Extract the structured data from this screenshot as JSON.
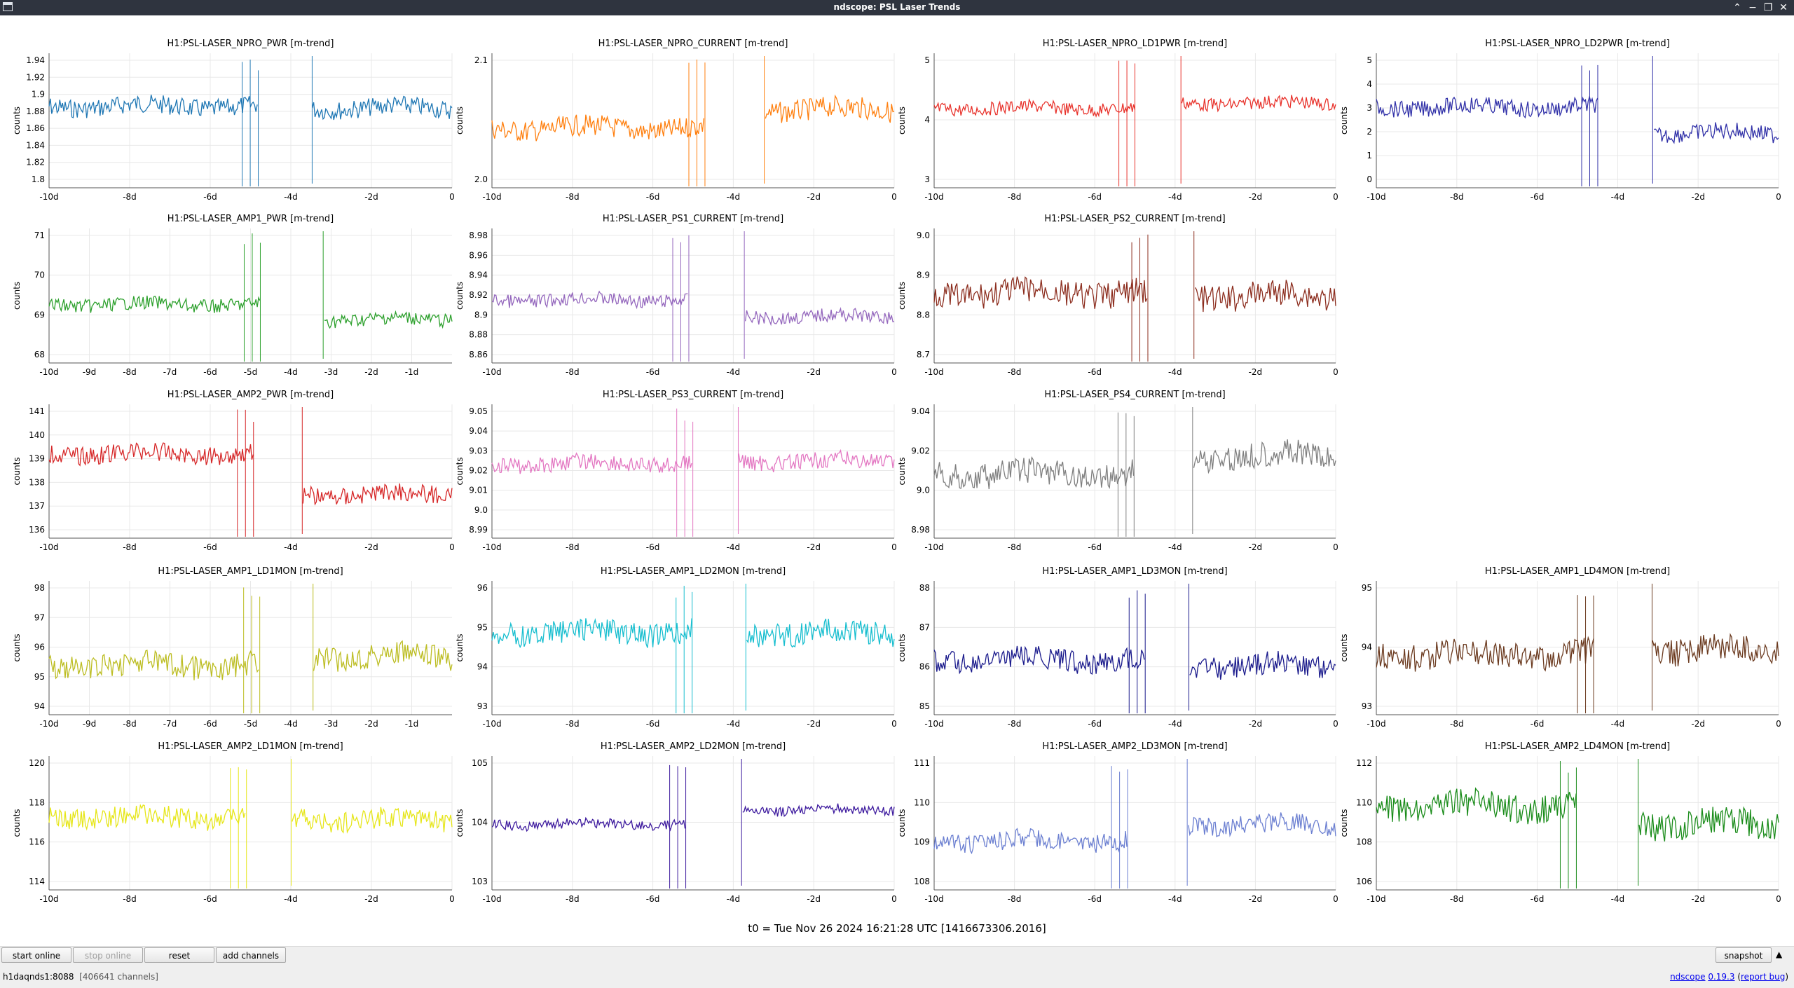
{
  "window": {
    "title": "ndscope: PSL Laser Trends"
  },
  "t0_label": "t0 = Tue Nov 26 2024 16:21:28 UTC [1416673306.2016]",
  "buttons": {
    "start_online": "start online",
    "stop_online": "stop online",
    "reset": "reset",
    "add_channels": "add channels",
    "snapshot": "snapshot"
  },
  "status": {
    "server": "h1daqnds1:8088",
    "channels": "[406641 channels]"
  },
  "version": {
    "name": "ndscope",
    "number": "0.19.3",
    "report": "report bug"
  },
  "ylabel": "counts",
  "plots": [
    {
      "title": "H1:PSL-LASER_NPRO_PWR [m-trend]",
      "color": "#1f77b4",
      "xticks": [
        "-10d",
        "-8d",
        "-6d",
        "-4d",
        "-2d",
        "0"
      ],
      "yticks": [
        "1.94",
        "1.92",
        "1.9",
        "1.88",
        "1.86",
        "1.84",
        "1.82",
        "1.8"
      ]
    },
    {
      "title": "H1:PSL-LASER_NPRO_CURRENT [m-trend]",
      "color": "#ff7f0e",
      "xticks": [
        "-10d",
        "-8d",
        "-6d",
        "-4d",
        "-2d",
        "0"
      ],
      "yticks": [
        "2.1",
        "2.0"
      ]
    },
    {
      "title": "H1:PSL-LASER_NPRO_LD1PWR [m-trend]",
      "color": "#e8322b",
      "xticks": [
        "-10d",
        "-8d",
        "-6d",
        "-4d",
        "-2d",
        "0"
      ],
      "yticks": [
        "5",
        "4",
        "3"
      ]
    },
    {
      "title": "H1:PSL-LASER_NPRO_LD2PWR [m-trend]",
      "color": "#3030a8",
      "xticks": [
        "-10d",
        "-8d",
        "-6d",
        "-4d",
        "-2d",
        "0"
      ],
      "yticks": [
        "5",
        "4",
        "3",
        "2",
        "1",
        "0"
      ]
    },
    {
      "title": "H1:PSL-LASER_AMP1_PWR [m-trend]",
      "color": "#2ca02c",
      "xticks": [
        "-10d",
        "-9d",
        "-8d",
        "-7d",
        "-6d",
        "-5d",
        "-4d",
        "-3d",
        "-2d",
        "-1d"
      ],
      "yticks": [
        "71",
        "70",
        "69",
        "68"
      ]
    },
    {
      "title": "H1:PSL-LASER_PS1_CURRENT [m-trend]",
      "color": "#9467bd",
      "xticks": [
        "-10d",
        "-8d",
        "-6d",
        "-4d",
        "-2d",
        "0"
      ],
      "yticks": [
        "8.98",
        "8.96",
        "8.94",
        "8.92",
        "8.9",
        "8.88",
        "8.86"
      ]
    },
    {
      "title": "H1:PSL-LASER_PS2_CURRENT [m-trend]",
      "color": "#8c2d1e",
      "xticks": [
        "-10d",
        "-8d",
        "-6d",
        "-4d",
        "-2d",
        "0"
      ],
      "yticks": [
        "9.0",
        "8.9",
        "8.8",
        "8.7"
      ]
    },
    null,
    {
      "title": "H1:PSL-LASER_AMP2_PWR [m-trend]",
      "color": "#d62728",
      "xticks": [
        "-10d",
        "-8d",
        "-6d",
        "-4d",
        "-2d",
        "0"
      ],
      "yticks": [
        "141",
        "140",
        "139",
        "138",
        "137",
        "136"
      ]
    },
    {
      "title": "H1:PSL-LASER_PS3_CURRENT [m-trend]",
      "color": "#e377c2",
      "xticks": [
        "-10d",
        "-8d",
        "-6d",
        "-4d",
        "-2d",
        "0"
      ],
      "yticks": [
        "9.05",
        "9.04",
        "9.03",
        "9.02",
        "9.01",
        "9.0",
        "8.99"
      ]
    },
    {
      "title": "H1:PSL-LASER_PS4_CURRENT [m-trend]",
      "color": "#7f7f7f",
      "xticks": [
        "-10d",
        "-8d",
        "-6d",
        "-4d",
        "-2d",
        "0"
      ],
      "yticks": [
        "9.04",
        "9.02",
        "9.0",
        "8.98"
      ]
    },
    null,
    {
      "title": "H1:PSL-LASER_AMP1_LD1MON [m-trend]",
      "color": "#bcbd22",
      "xticks": [
        "-10d",
        "-9d",
        "-8d",
        "-7d",
        "-6d",
        "-5d",
        "-4d",
        "-3d",
        "-2d",
        "-1d"
      ],
      "yticks": [
        "98",
        "97",
        "96",
        "95",
        "94"
      ]
    },
    {
      "title": "H1:PSL-LASER_AMP1_LD2MON [m-trend]",
      "color": "#17becf",
      "xticks": [
        "-10d",
        "-8d",
        "-6d",
        "-4d",
        "-2d",
        "0"
      ],
      "yticks": [
        "96",
        "95",
        "94",
        "93"
      ]
    },
    {
      "title": "H1:PSL-LASER_AMP1_LD3MON [m-trend]",
      "color": "#1a1a8c",
      "xticks": [
        "-10d",
        "-8d",
        "-6d",
        "-4d",
        "-2d",
        "0"
      ],
      "yticks": [
        "88",
        "87",
        "86",
        "85"
      ]
    },
    {
      "title": "H1:PSL-LASER_AMP1_LD4MON [m-trend]",
      "color": "#6b3a1f",
      "xticks": [
        "-10d",
        "-8d",
        "-6d",
        "-4d",
        "-2d",
        "0"
      ],
      "yticks": [
        "95",
        "94",
        "93"
      ]
    },
    {
      "title": "H1:PSL-LASER_AMP2_LD1MON [m-trend]",
      "color": "#e6e619",
      "xticks": [
        "-10d",
        "-8d",
        "-6d",
        "-4d",
        "-2d",
        "0"
      ],
      "yticks": [
        "120",
        "118",
        "116",
        "114"
      ]
    },
    {
      "title": "H1:PSL-LASER_AMP2_LD2MON [m-trend]",
      "color": "#3d1a9e",
      "xticks": [
        "-10d",
        "-8d",
        "-6d",
        "-4d",
        "-2d",
        "0"
      ],
      "yticks": [
        "105",
        "104",
        "103"
      ]
    },
    {
      "title": "H1:PSL-LASER_AMP2_LD3MON [m-trend]",
      "color": "#6b7fd1",
      "xticks": [
        "-10d",
        "-8d",
        "-6d",
        "-4d",
        "-2d",
        "0"
      ],
      "yticks": [
        "111",
        "110",
        "109",
        "108"
      ]
    },
    {
      "title": "H1:PSL-LASER_AMP2_LD4MON [m-trend]",
      "color": "#1a8c1a",
      "xticks": [
        "-10d",
        "-8d",
        "-6d",
        "-4d",
        "-2d",
        "0"
      ],
      "yticks": [
        "112",
        "110",
        "108",
        "106"
      ]
    }
  ]
}
